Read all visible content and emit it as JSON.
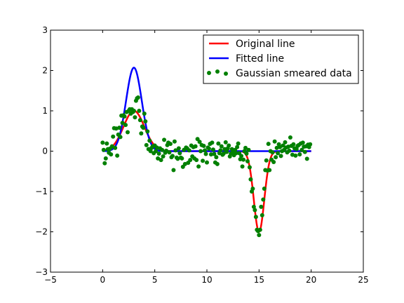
{
  "chart_data": {
    "type": "scatter",
    "title": "",
    "xlabel": "",
    "ylabel": "",
    "xlim": [
      -5,
      25
    ],
    "ylim": [
      -3,
      3
    ],
    "x_ticks": [
      -5,
      0,
      5,
      10,
      15,
      20,
      25
    ],
    "y_ticks": [
      -3,
      -2,
      -1,
      0,
      1,
      2,
      3
    ],
    "x_tick_labels": [
      "−5",
      "0",
      "5",
      "10",
      "15",
      "20",
      "25"
    ],
    "y_tick_labels": [
      "−3",
      "−2",
      "−1",
      "0",
      "1",
      "2",
      "3"
    ],
    "grid": false,
    "legend_position": "top-right",
    "legend": [
      "Original line",
      "Fitted line",
      "Gaussian smeared data"
    ],
    "series": [
      {
        "name": "Original line",
        "kind": "line",
        "color": "#ff0000",
        "model": "sum of gaussians",
        "components": [
          {
            "amplitude": 1.0,
            "center": 3.0,
            "sigma": 1.0
          },
          {
            "amplitude": -2.0,
            "center": 15.0,
            "sigma": 0.5
          }
        ],
        "x_range": [
          0,
          20
        ]
      },
      {
        "name": "Fitted line",
        "kind": "line",
        "color": "#0000ff",
        "model": "sum of gaussians",
        "components": [
          {
            "amplitude": 2.07,
            "center": 3.0,
            "sigma": 0.75
          }
        ],
        "x_range": [
          0,
          20
        ]
      },
      {
        "name": "Gaussian smeared data",
        "kind": "scatter",
        "color": "#008000",
        "points": [
          [
            0.0,
            0.21
          ],
          [
            0.1,
            0.03
          ],
          [
            0.2,
            -0.3
          ],
          [
            0.3,
            -0.18
          ],
          [
            0.4,
            0.19
          ],
          [
            0.5,
            0.05
          ],
          [
            0.6,
            -0.04
          ],
          [
            0.7,
            0.06
          ],
          [
            0.8,
            -0.08
          ],
          [
            0.9,
            0.12
          ],
          [
            1.0,
            0.36
          ],
          [
            1.1,
            0.57
          ],
          [
            1.2,
            0.08
          ],
          [
            1.3,
            0.56
          ],
          [
            1.4,
            -0.11
          ],
          [
            1.5,
            0.41
          ],
          [
            1.6,
            0.58
          ],
          [
            1.7,
            0.35
          ],
          [
            1.8,
            0.88
          ],
          [
            1.9,
            0.7
          ],
          [
            2.0,
            0.89
          ],
          [
            2.1,
            0.86
          ],
          [
            2.2,
            0.65
          ],
          [
            2.3,
            0.97
          ],
          [
            2.4,
            0.47
          ],
          [
            2.5,
            1.0
          ],
          [
            2.6,
            1.04
          ],
          [
            2.7,
            0.93
          ],
          [
            2.8,
            1.04
          ],
          [
            2.9,
            0.97
          ],
          [
            3.0,
            1.0
          ],
          [
            3.1,
            0.84
          ],
          [
            3.2,
            1.25
          ],
          [
            3.3,
            1.31
          ],
          [
            3.4,
            1.33
          ],
          [
            3.5,
            1.0
          ],
          [
            3.6,
            0.77
          ],
          [
            3.7,
            0.44
          ],
          [
            3.8,
            0.61
          ],
          [
            3.9,
            0.58
          ],
          [
            4.0,
            0.93
          ],
          [
            4.1,
            0.74
          ],
          [
            4.2,
            0.15
          ],
          [
            4.3,
            0.49
          ],
          [
            4.4,
            0.05
          ],
          [
            4.5,
            0.26
          ],
          [
            4.6,
            0.0
          ],
          [
            4.7,
            0.08
          ],
          [
            4.8,
            0.12
          ],
          [
            4.9,
            -0.05
          ],
          [
            5.0,
            0.14
          ],
          [
            5.1,
            0.0
          ],
          [
            5.2,
            0.09
          ],
          [
            5.3,
            -0.18
          ],
          [
            5.4,
            -0.06
          ],
          [
            5.5,
            0.07
          ],
          [
            5.6,
            -0.22
          ],
          [
            5.7,
            0.03
          ],
          [
            5.8,
            -0.13
          ],
          [
            5.9,
            0.28
          ],
          [
            6.0,
            -0.04
          ],
          [
            6.1,
            0.01
          ],
          [
            6.2,
            0.15
          ],
          [
            6.3,
            0.21
          ],
          [
            6.4,
            -0.03
          ],
          [
            6.5,
            0.18
          ],
          [
            6.6,
            -0.15
          ],
          [
            6.7,
            -0.12
          ],
          [
            6.8,
            -0.47
          ],
          [
            6.9,
            0.24
          ],
          [
            7.0,
            0.02
          ],
          [
            7.1,
            -0.16
          ],
          [
            7.2,
            -0.19
          ],
          [
            7.3,
            0.07
          ],
          [
            7.4,
            -0.05
          ],
          [
            7.5,
            -0.16
          ],
          [
            7.6,
            -0.18
          ],
          [
            7.7,
            -0.39
          ],
          [
            7.8,
            0.03
          ],
          [
            7.9,
            -0.32
          ],
          [
            8.0,
            0.09
          ],
          [
            8.1,
            0.07
          ],
          [
            8.2,
            -0.29
          ],
          [
            8.3,
            0.02
          ],
          [
            8.4,
            -0.22
          ],
          [
            8.5,
            0.14
          ],
          [
            8.6,
            -0.13
          ],
          [
            8.7,
            0.1
          ],
          [
            8.8,
            -0.18
          ],
          [
            8.9,
            0.12
          ],
          [
            9.0,
            -0.22
          ],
          [
            9.1,
            0.3
          ],
          [
            9.2,
            -0.38
          ],
          [
            9.3,
            0.23
          ],
          [
            9.4,
            0.0
          ],
          [
            9.5,
            0.15
          ],
          [
            9.6,
            -0.24
          ],
          [
            9.7,
            0.13
          ],
          [
            9.8,
            0.02
          ],
          [
            9.9,
            -0.07
          ],
          [
            10.0,
            -0.28
          ],
          [
            10.1,
            0.09
          ],
          [
            10.2,
            0.06
          ],
          [
            10.3,
            0.18
          ],
          [
            10.4,
            -0.08
          ],
          [
            10.5,
            0.21
          ],
          [
            10.6,
            0.04
          ],
          [
            10.7,
            -0.07
          ],
          [
            10.8,
            -0.28
          ],
          [
            10.9,
            -0.15
          ],
          [
            11.0,
            -0.32
          ],
          [
            11.1,
            0.19
          ],
          [
            11.2,
            -0.05
          ],
          [
            11.3,
            0.02
          ],
          [
            11.4,
            0.12
          ],
          [
            11.5,
            -0.09
          ],
          [
            11.6,
            -0.06
          ],
          [
            11.7,
            0.05
          ],
          [
            11.8,
            0.22
          ],
          [
            11.9,
            -0.02
          ],
          [
            12.0,
            0.07
          ],
          [
            12.1,
            0.14
          ],
          [
            12.2,
            -0.13
          ],
          [
            12.3,
            -0.06
          ],
          [
            12.4,
            0.05
          ],
          [
            12.5,
            -0.01
          ],
          [
            12.6,
            -0.1
          ],
          [
            12.7,
            0.03
          ],
          [
            12.8,
            -0.05
          ],
          [
            12.9,
            0.1
          ],
          [
            13.0,
            0.19
          ],
          [
            13.1,
            -0.05
          ],
          [
            13.2,
            -0.2
          ],
          [
            13.3,
            -0.12
          ],
          [
            13.4,
            -0.38
          ],
          [
            13.5,
            -0.21
          ],
          [
            13.6,
            0.0
          ],
          [
            13.7,
            0.08
          ],
          [
            13.8,
            -0.06
          ],
          [
            13.9,
            -0.25
          ],
          [
            14.0,
            0.03
          ],
          [
            14.1,
            -0.4
          ],
          [
            14.2,
            -0.7
          ],
          [
            14.3,
            -1.0
          ],
          [
            14.4,
            -0.93
          ],
          [
            14.5,
            -1.38
          ],
          [
            14.6,
            -1.46
          ],
          [
            14.7,
            -1.63
          ],
          [
            14.8,
            -1.95
          ],
          [
            14.9,
            -1.98
          ],
          [
            15.0,
            -2.08
          ],
          [
            15.1,
            -1.95
          ],
          [
            15.2,
            -1.38
          ],
          [
            15.3,
            -1.59
          ],
          [
            15.4,
            -1.2
          ],
          [
            15.5,
            -0.93
          ],
          [
            15.6,
            -0.47
          ],
          [
            15.7,
            -0.23
          ],
          [
            15.8,
            -0.48
          ],
          [
            15.9,
            0.18
          ],
          [
            16.0,
            -0.47
          ],
          [
            16.1,
            0.0
          ],
          [
            16.2,
            -0.21
          ],
          [
            16.3,
            -0.03
          ],
          [
            16.4,
            -0.27
          ],
          [
            16.5,
            0.24
          ],
          [
            16.6,
            -0.15
          ],
          [
            16.7,
            0.08
          ],
          [
            16.8,
            -0.05
          ],
          [
            16.9,
            0.17
          ],
          [
            17.0,
            0.1
          ],
          [
            17.1,
            -0.12
          ],
          [
            17.2,
            0.0
          ],
          [
            17.3,
            0.14
          ],
          [
            17.4,
            0.03
          ],
          [
            17.5,
            0.22
          ],
          [
            17.6,
            0.09
          ],
          [
            17.7,
            -0.03
          ],
          [
            17.8,
            0.11
          ],
          [
            17.9,
            0.01
          ],
          [
            18.0,
            0.34
          ],
          [
            18.1,
            0.13
          ],
          [
            18.2,
            -0.09
          ],
          [
            18.3,
            0.17
          ],
          [
            18.4,
            0.07
          ],
          [
            18.5,
            -0.11
          ],
          [
            18.6,
            0.05
          ],
          [
            18.7,
            0.13
          ],
          [
            18.8,
            0.15
          ],
          [
            18.9,
            -0.08
          ],
          [
            19.0,
            0.19
          ],
          [
            19.1,
            0.03
          ],
          [
            19.2,
            0.21
          ],
          [
            19.3,
            0.11
          ],
          [
            19.4,
            -0.02
          ],
          [
            19.5,
            0.12
          ],
          [
            19.6,
            -0.19
          ],
          [
            19.7,
            0.16
          ],
          [
            19.8,
            0.1
          ],
          [
            19.9,
            0.17
          ]
        ]
      }
    ]
  }
}
